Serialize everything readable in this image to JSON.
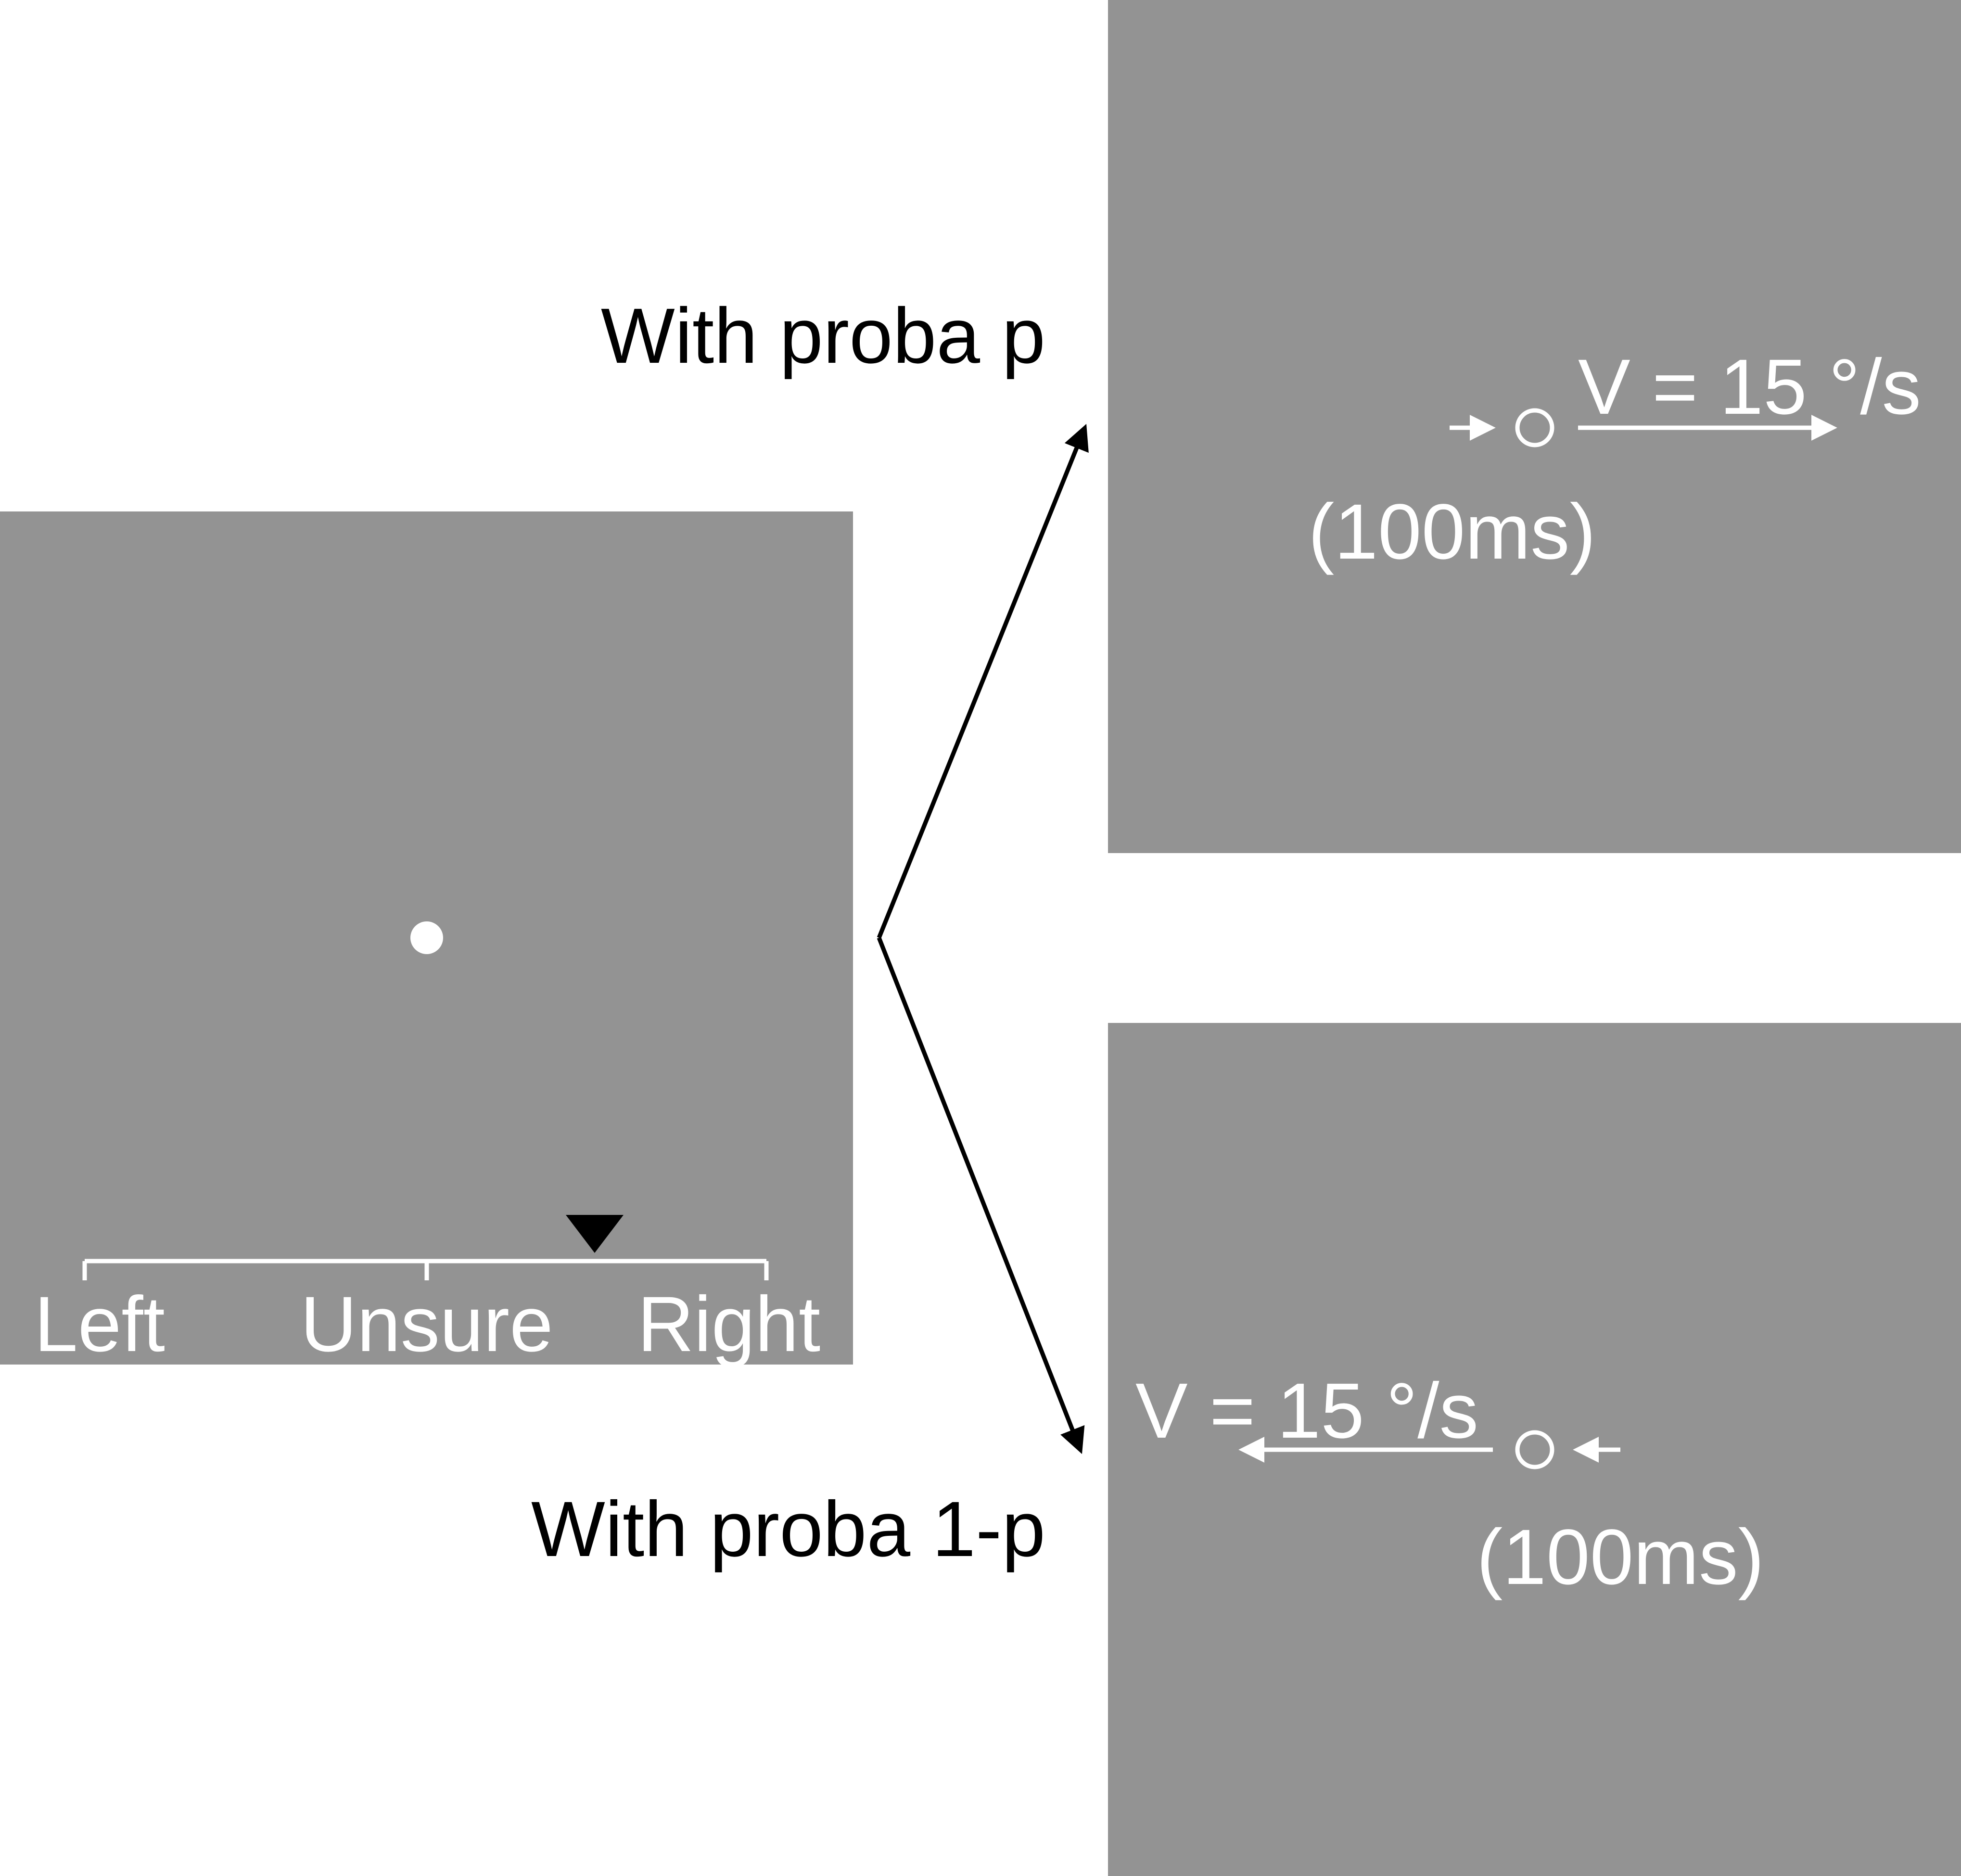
{
  "colors": {
    "panel": "#939393",
    "background": "#ffffff",
    "foreground_on_panel": "#ffffff",
    "foreground": "#000000"
  },
  "fixation_panel": {
    "scale_labels": {
      "left": "Left",
      "unsure": "Unsure",
      "right": "Right"
    },
    "cursor_icon": "triangle-down-icon"
  },
  "branches": {
    "top": {
      "label": "With proba p",
      "velocity": "V = 15 °/s",
      "duration": "(100ms)",
      "direction": "rightward"
    },
    "bottom": {
      "label": "With proba 1-p",
      "velocity": "V = 15 °/s",
      "duration": "(100ms)",
      "direction": "leftward"
    }
  }
}
